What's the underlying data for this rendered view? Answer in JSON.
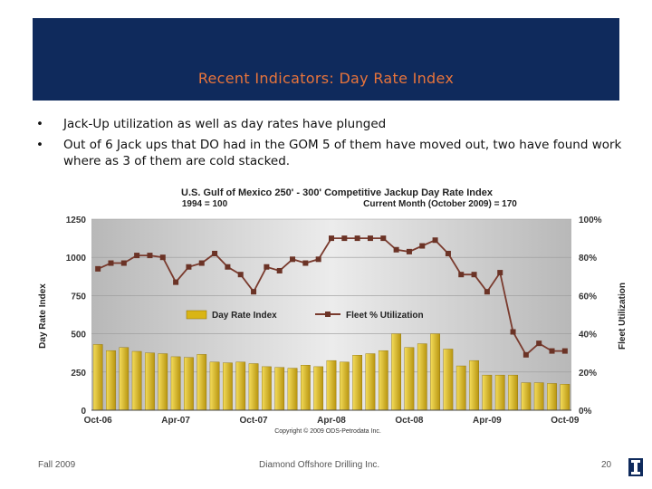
{
  "slide": {
    "title": "Recent Indicators: Day Rate Index",
    "bullets": [
      "Jack-Up utilization as well as day rates have plunged",
      "Out of 6 Jack ups that DO had in the GOM 5 of them have moved out, two have found work where as 3 of them are cold stacked."
    ],
    "bullet_symbol": "•",
    "footer_left": "Fall 2009",
    "footer_center": "Diamond Offshore Drilling Inc.",
    "page_number": "20",
    "banner_color": "#0f2a5c",
    "title_color": "#e8743b"
  },
  "chart_data": {
    "type": "bar",
    "title": "U.S. Gulf of Mexico 250' - 300' Competitive Jackup Day Rate Index",
    "subtitle_left": "1994 = 100",
    "subtitle_right": "Current Month (October 2009) = 170",
    "ylabel": "Day Rate Index",
    "y2label": "Fleet Utilization",
    "copyright": "Copyright © 2009 ODS-Petrodata Inc.",
    "ylim": [
      0,
      1250
    ],
    "y_ticks": [
      "0",
      "250",
      "500",
      "750",
      "1000",
      "1250"
    ],
    "y2lim": [
      0,
      100
    ],
    "y2_ticks": [
      "0%",
      "20%",
      "40%",
      "60%",
      "80%",
      "100%"
    ],
    "x_tick_labels": [
      "Oct-06",
      "Apr-07",
      "Oct-07",
      "Apr-08",
      "Oct-08",
      "Apr-09",
      "Oct-09"
    ],
    "legend": [
      "Day Rate Index",
      "Fleet % Utilization"
    ],
    "legend_position": "center",
    "grid": true,
    "bar_color": "#d9b515",
    "line_color": "#7a3b2e",
    "months": [
      "Oct-06",
      "Nov-06",
      "Dec-06",
      "Jan-07",
      "Feb-07",
      "Mar-07",
      "Apr-07",
      "May-07",
      "Jun-07",
      "Jul-07",
      "Aug-07",
      "Sep-07",
      "Oct-07",
      "Nov-07",
      "Dec-07",
      "Jan-08",
      "Feb-08",
      "Mar-08",
      "Apr-08",
      "May-08",
      "Jun-08",
      "Jul-08",
      "Aug-08",
      "Sep-08",
      "Oct-08",
      "Nov-08",
      "Dec-08",
      "Jan-09",
      "Feb-09",
      "Mar-09",
      "Apr-09",
      "May-09",
      "Jun-09",
      "Jul-09",
      "Aug-09",
      "Sep-09",
      "Oct-09"
    ],
    "series": [
      {
        "name": "Day Rate Index",
        "type": "bar",
        "values": [
          430,
          390,
          410,
          385,
          375,
          370,
          350,
          345,
          365,
          315,
          310,
          315,
          305,
          285,
          280,
          275,
          295,
          285,
          325,
          315,
          360,
          370,
          390,
          500,
          410,
          435,
          500,
          400,
          290,
          325,
          230,
          230,
          230,
          180,
          180,
          175,
          170
        ]
      },
      {
        "name": "Fleet % Utilization",
        "type": "line",
        "values": [
          74,
          77,
          77,
          81,
          81,
          80,
          67,
          75,
          77,
          82,
          75,
          71,
          62,
          75,
          73,
          79,
          77,
          79,
          90,
          90,
          90,
          90,
          90,
          84,
          83,
          86,
          89,
          82,
          71,
          71,
          62,
          72,
          41,
          29,
          35,
          31,
          31
        ]
      }
    ]
  }
}
